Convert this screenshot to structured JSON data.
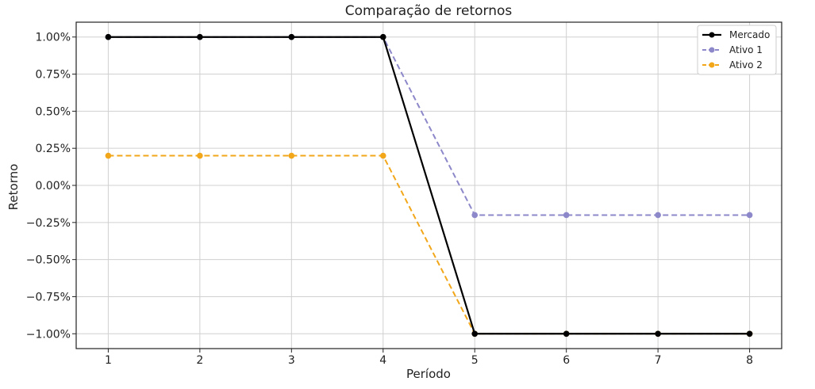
{
  "chart_data": {
    "type": "line",
    "title": "Comparação de retornos",
    "xlabel": "Período",
    "ylabel": "Retorno",
    "x": [
      1,
      2,
      3,
      4,
      5,
      6,
      7,
      8
    ],
    "xlim": [
      0.65,
      8.35
    ],
    "ylim": [
      -1.1,
      1.1
    ],
    "xticks": [
      1,
      2,
      3,
      4,
      5,
      6,
      7,
      8
    ],
    "yticks": [
      1.0,
      0.75,
      0.5,
      0.25,
      0.0,
      -0.25,
      -0.5,
      -0.75,
      -1.0
    ],
    "ytick_labels": [
      "1.00%",
      "0.75%",
      "0.50%",
      "0.25%",
      "0.00%",
      "−0.25%",
      "−0.50%",
      "−0.75%",
      "−1.00%"
    ],
    "grid": true,
    "legend_position": "top-right",
    "series": [
      {
        "name": "Mercado",
        "values": [
          1.0,
          1.0,
          1.0,
          1.0,
          -1.0,
          -1.0,
          -1.0,
          -1.0
        ],
        "color": "#000000",
        "style": "solid"
      },
      {
        "name": "Ativo 1",
        "values": [
          1.0,
          1.0,
          1.0,
          1.0,
          -0.2,
          -0.2,
          -0.2,
          -0.2
        ],
        "color": "#8c88c9",
        "style": "dashed"
      },
      {
        "name": "Ativo 2",
        "values": [
          0.2,
          0.2,
          0.2,
          0.2,
          -1.0,
          -1.0,
          -1.0,
          -1.0
        ],
        "color": "#f2a71b",
        "style": "dashed"
      }
    ]
  }
}
